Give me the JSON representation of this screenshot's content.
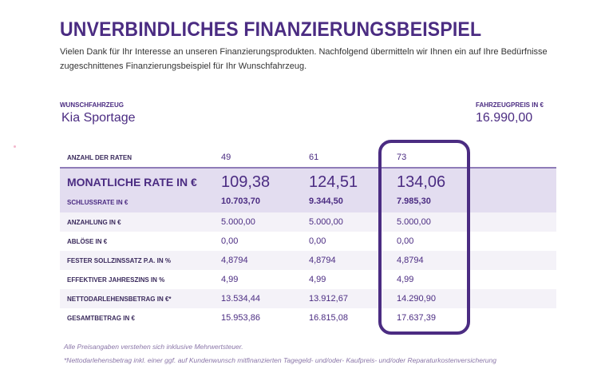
{
  "title": "UNVERBINDLICHES FINANZIERUNGSBEISPIEL",
  "intro": "Vielen Dank für Ihr Interesse an unseren Finanzierungsprodukten. Nachfolgend übermitteln wir Ihnen ein auf Ihre Bedürfnisse zugeschnittenes Finanzierungsbeispiel für Ihr Wunschfahrzeug.",
  "vehicle": {
    "label": "WUNSCHFAHRZEUG",
    "value": "Kia Sportage"
  },
  "price": {
    "label": "FAHRZEUGPREIS IN €",
    "value": "16.990,00"
  },
  "accent": "#4b2c82",
  "table": {
    "installments": {
      "label": "ANZAHL DER RATEN",
      "values": [
        "49",
        "61",
        "73"
      ]
    },
    "monthly": {
      "label": "MONATLICHE RATE IN €",
      "values": [
        "109,38",
        "124,51",
        "134,06"
      ]
    },
    "final": {
      "label": "SCHLUSSRATE IN €",
      "values": [
        "10.703,70",
        "9.344,50",
        "7.985,30"
      ]
    },
    "rows": [
      {
        "label": "ANZAHLUNG IN €",
        "values": [
          "5.000,00",
          "5.000,00",
          "5.000,00"
        ]
      },
      {
        "label": "ABLÖSE IN €",
        "values": [
          "0,00",
          "0,00",
          "0,00"
        ]
      },
      {
        "label": "FESTER SOLLZINSSATZ P.A. IN %",
        "values": [
          "4,8794",
          "4,8794",
          "4,8794"
        ]
      },
      {
        "label": "EFFEKTIVER JAHRESZINS IN %",
        "values": [
          "4,99",
          "4,99",
          "4,99"
        ]
      },
      {
        "label": "NETTODARLEHENSBETRAG IN €*",
        "values": [
          "13.534,44",
          "13.912,67",
          "14.290,90"
        ]
      },
      {
        "label": "GESAMTBETRAG IN €",
        "values": [
          "15.953,86",
          "16.815,08",
          "17.637,39"
        ]
      }
    ],
    "selected_column": 3
  },
  "footnotes": [
    "Alle Preisangaben verstehen sich inklusive Mehrwertsteuer.",
    "*Nettodarlehensbetrag inkl. einer ggf. auf Kundenwunsch mitfinanzierten Tagegeld- und/oder- Kaufpreis- und/oder Reparaturkostenversicherung"
  ]
}
